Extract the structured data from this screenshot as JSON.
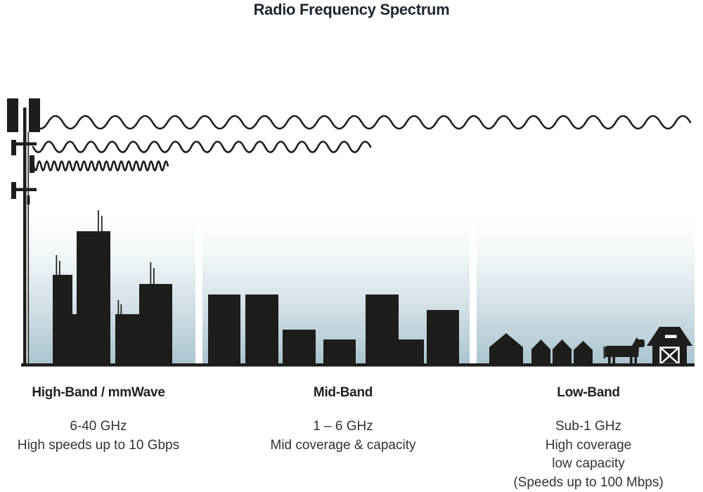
{
  "title": "Radio Frequency Spectrum",
  "colors": {
    "ink": "#1d1d1b",
    "title_ink": "#1e2630",
    "text_ink": "#33332f",
    "coverage_sky_bottom": "#a9c4d0",
    "coverage_sky_top": "#ffffff"
  },
  "bands": [
    {
      "heading": "High-Band / mmWave",
      "lines": [
        "6-40 GHz",
        "High speeds up to 10 Gbps"
      ]
    },
    {
      "heading": "Mid-Band",
      "lines": [
        "1 – 6 GHz",
        "Mid coverage & capacity"
      ]
    },
    {
      "heading": "Low-Band",
      "lines": [
        "Sub-1 GHz",
        "High coverage",
        "low capacity",
        "(Speeds up to 100 Mbps)"
      ]
    }
  ],
  "waves": [
    {
      "name": "low-frequency long wave",
      "reach": "full width (low-band)"
    },
    {
      "name": "mid-frequency medium wave",
      "reach": "half width (mid-band)"
    },
    {
      "name": "high-frequency short wave",
      "reach": "short (high-band)"
    }
  ]
}
